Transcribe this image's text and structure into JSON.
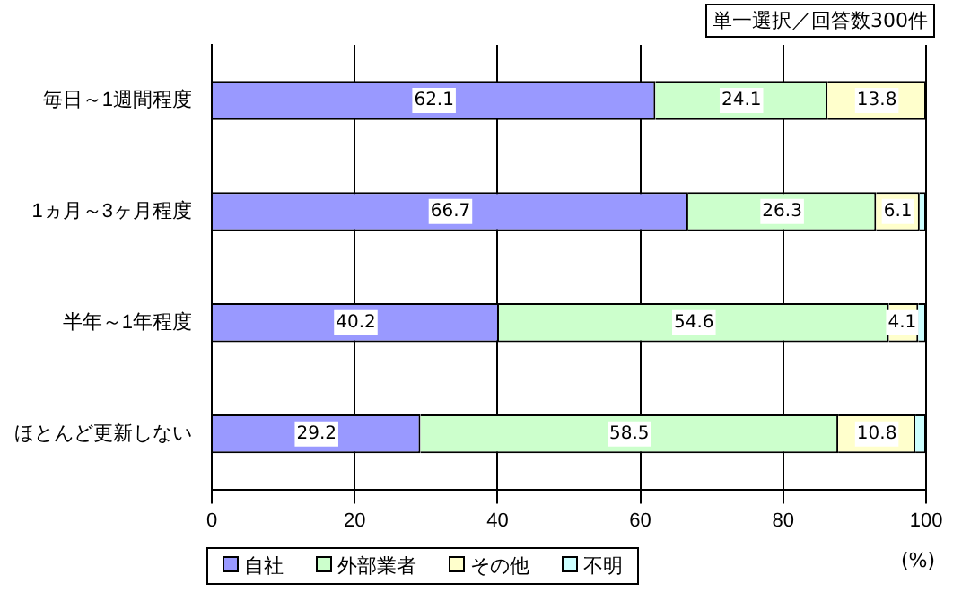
{
  "chart_data": {
    "type": "bar",
    "orientation": "horizontal",
    "stacked": true,
    "categories": [
      "毎日～1週間程度",
      "1ヵ月～3ヶ月程度",
      "半年～1年程度",
      "ほとんど更新しない"
    ],
    "series": [
      {
        "name": "自社",
        "color": "#9999ff",
        "values": [
          62.1,
          66.7,
          40.2,
          29.2
        ],
        "value_labels": [
          "62.1",
          "66.7",
          "40.2",
          "29.2"
        ]
      },
      {
        "name": "外部業者",
        "color": "#ccffcc",
        "values": [
          24.1,
          26.3,
          54.6,
          58.5
        ],
        "value_labels": [
          "24.1",
          "26.3",
          "54.6",
          "58.5"
        ]
      },
      {
        "name": "その他",
        "color": "#ffffcc",
        "values": [
          13.8,
          6.1,
          4.1,
          10.8
        ],
        "value_labels": [
          "13.8",
          "6.1",
          "4.1",
          "10.8"
        ]
      },
      {
        "name": "不明",
        "color": "#ccffff",
        "values": [
          null,
          0.9,
          1.1,
          1.5
        ],
        "value_labels": [
          null,
          null,
          null,
          null
        ]
      }
    ],
    "xlim": [
      0,
      100
    ],
    "xticks": [
      0,
      20,
      40,
      60,
      80,
      100
    ],
    "xlabel": "(%)",
    "grid": "x",
    "legend": "bottom",
    "annotations": [
      "単一選択／回答数300件"
    ]
  }
}
